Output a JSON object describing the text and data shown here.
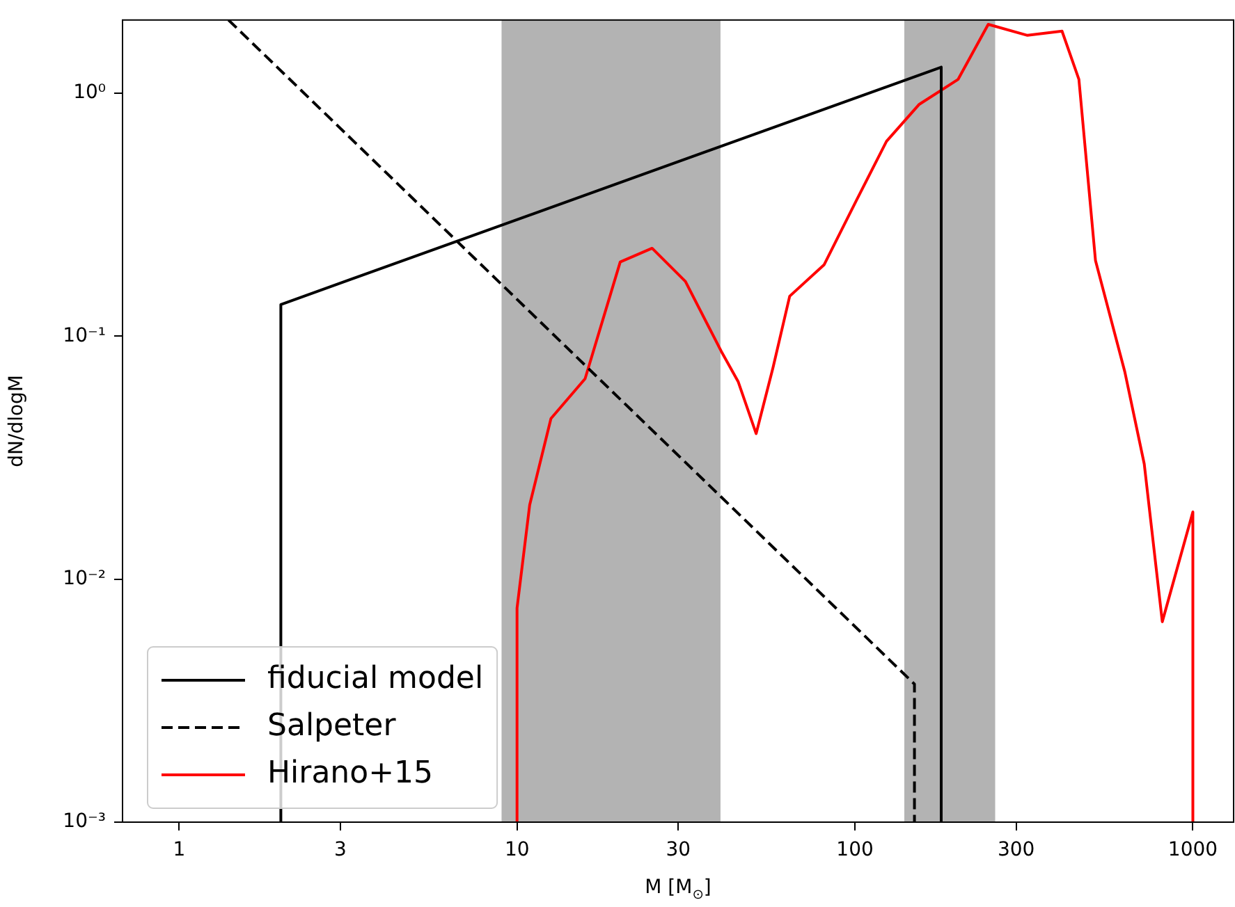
{
  "chart_data": {
    "type": "line",
    "xlabel": "M [M$_{⊙}$]",
    "ylabel": "dN/dlogM",
    "log": "xy",
    "xlim": [
      0.68,
      1320
    ],
    "ylim": [
      0.001,
      2
    ],
    "xticks": [
      1,
      3,
      10,
      30,
      100,
      300,
      1000
    ],
    "yticks": [
      {
        "value": 0.001,
        "label": "10⁻³"
      },
      {
        "value": 0.01,
        "label": "10⁻²"
      },
      {
        "value": 0.1,
        "label": "10⁻¹"
      },
      {
        "value": 1,
        "label": "10⁰"
      }
    ],
    "grid": false,
    "legend": "bottom left",
    "marker": "none",
    "bands": [
      {
        "axis": "x",
        "from": 9,
        "to": 40,
        "color": "#b3b3b3"
      },
      {
        "axis": "x",
        "from": 140,
        "to": 260,
        "color": "#b3b3b3"
      }
    ],
    "series": [
      {
        "name": "fiducial model",
        "color": "#000000",
        "line_style": "solid",
        "x": [
          2,
          2,
          180,
          180
        ],
        "values": [
          0.001,
          0.135,
          1.28,
          0.001
        ]
      },
      {
        "name": "Salpeter",
        "color": "#000000",
        "line_style": "dashed",
        "x": [
          1.4,
          150,
          150
        ],
        "values": [
          2.0,
          0.0037,
          0.001
        ]
      },
      {
        "name": "Hirano+15",
        "color": "#ff0000",
        "line_style": "solid",
        "x": [
          10,
          10,
          10.9,
          12.6,
          15.9,
          20.2,
          25.1,
          31.5,
          40.2,
          45.1,
          51,
          57.2,
          64.1,
          81.1,
          101,
          124,
          155,
          202,
          248,
          324,
          410,
          460,
          515,
          629,
          718,
          812,
          1000,
          1000
        ],
        "values": [
          0.001,
          0.0076,
          0.0202,
          0.0458,
          0.0668,
          0.202,
          0.23,
          0.168,
          0.0867,
          0.0651,
          0.0397,
          0.0741,
          0.146,
          0.197,
          0.362,
          0.634,
          0.9,
          1.14,
          1.92,
          1.73,
          1.8,
          1.14,
          0.205,
          0.0713,
          0.0298,
          0.00668,
          0.0189,
          0.001
        ]
      }
    ]
  }
}
